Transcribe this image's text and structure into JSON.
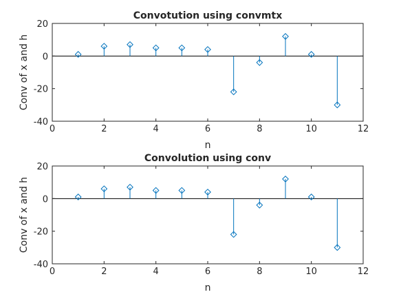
{
  "chart_data": [
    {
      "type": "stem",
      "title": "Convotution using convmtx",
      "xlabel": "n",
      "ylabel": "Conv of x and h",
      "xlim": [
        0,
        12
      ],
      "ylim": [
        -40,
        20
      ],
      "xticks": [
        0,
        2,
        4,
        6,
        8,
        10,
        12
      ],
      "yticks": [
        20,
        0,
        -20,
        -40
      ],
      "grid": false,
      "color": "#0072bd",
      "marker": "diamond",
      "x": [
        1,
        2,
        3,
        4,
        5,
        6,
        7,
        8,
        9,
        10,
        11
      ],
      "values": [
        1,
        6,
        7,
        5,
        5,
        4,
        -22,
        -4,
        12,
        1,
        -30
      ]
    },
    {
      "type": "stem",
      "title": "Convolution using conv",
      "xlabel": "n",
      "ylabel": "Conv of x and h",
      "xlim": [
        0,
        12
      ],
      "ylim": [
        -40,
        20
      ],
      "xticks": [
        0,
        2,
        4,
        6,
        8,
        10,
        12
      ],
      "yticks": [
        20,
        0,
        -20,
        -40
      ],
      "grid": false,
      "color": "#0072bd",
      "marker": "diamond",
      "x": [
        1,
        2,
        3,
        4,
        5,
        6,
        7,
        8,
        9,
        10,
        11
      ],
      "values": [
        1,
        6,
        7,
        5,
        5,
        4,
        -22,
        -4,
        12,
        1,
        -30
      ]
    }
  ]
}
